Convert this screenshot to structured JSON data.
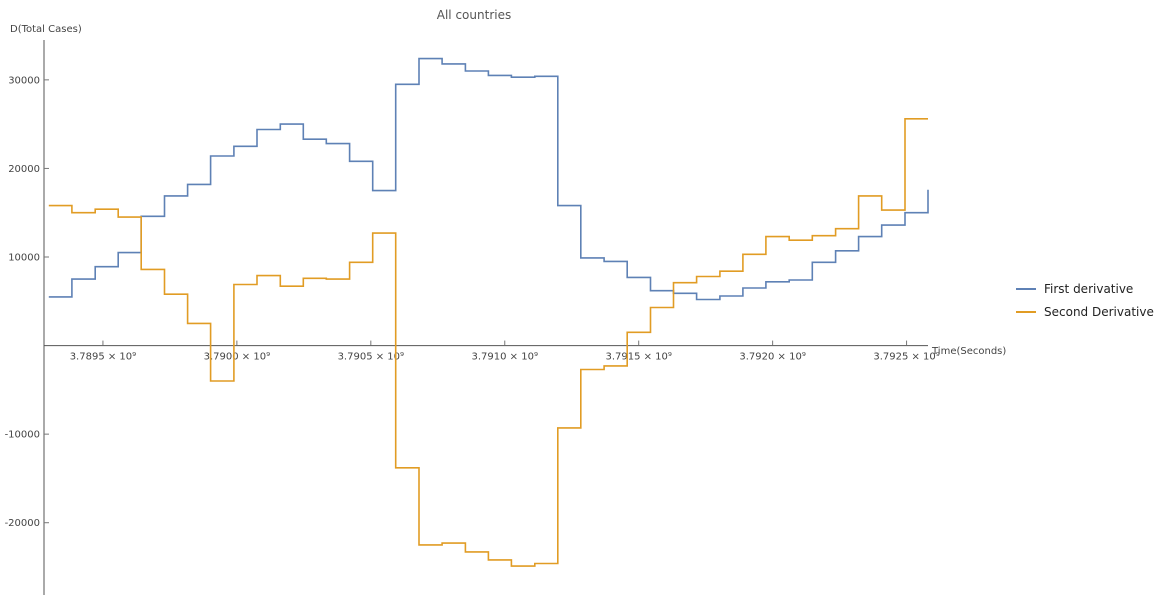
{
  "chart_data": {
    "type": "line",
    "step": true,
    "title": "All countries",
    "xlabel": "Time(Seconds)",
    "ylabel": "D(Total Cases)",
    "xlim": [
      3789280000.0,
      3792580000.0
    ],
    "ylim": [
      -28500,
      34500
    ],
    "xticks": [
      {
        "value": 3789500000.0,
        "label": "3.7895 × 10⁹"
      },
      {
        "value": 3790000000.0,
        "label": "3.7900 × 10⁹"
      },
      {
        "value": 3790500000.0,
        "label": "3.7905 × 10⁹"
      },
      {
        "value": 3791000000.0,
        "label": "3.7910 × 10⁹"
      },
      {
        "value": 3791500000.0,
        "label": "3.7915 × 10⁹"
      },
      {
        "value": 3792000000.0,
        "label": "3.7920 × 10⁹"
      },
      {
        "value": 3792500000.0,
        "label": "3.7925 × 10⁹"
      }
    ],
    "yticks": [
      {
        "value": -20000,
        "label": "-20000"
      },
      {
        "value": -10000,
        "label": "-10000"
      },
      {
        "value": 10000,
        "label": "10000"
      },
      {
        "value": 20000,
        "label": "20000"
      },
      {
        "value": 30000,
        "label": "30000"
      }
    ],
    "legend_position": "right",
    "series": [
      {
        "name": "First derivative",
        "color": "#5e81b5",
        "x": [
          3789298000.0,
          3789384000.0,
          3789471000.0,
          3789557000.0,
          3789643000.0,
          3789730000.0,
          3789816000.0,
          3789902000.0,
          3789989000.0,
          3790075000.0,
          3790162000.0,
          3790248000.0,
          3790334000.0,
          3790421000.0,
          3790507000.0,
          3790593000.0,
          3790680000.0,
          3790766000.0,
          3790853000.0,
          3790939000.0,
          3791025000.0,
          3791112000.0,
          3791198000.0,
          3791284000.0,
          3791371000.0,
          3791457000.0,
          3791544000.0,
          3791630000.0,
          3791716000.0,
          3791803000.0,
          3791889000.0,
          3791975000.0,
          3792062000.0,
          3792148000.0,
          3792235000.0,
          3792321000.0,
          3792407000.0,
          3792494000.0,
          3792580000.0
        ],
        "values": [
          5500,
          7500,
          8900,
          10500,
          14600,
          16900,
          18200,
          21400,
          22500,
          24400,
          25000,
          23300,
          22800,
          20800,
          17500,
          29500,
          32400,
          31800,
          31000,
          30500,
          30300,
          30400,
          15800,
          9900,
          9500,
          7700,
          6200,
          5900,
          5200,
          5600,
          6500,
          7200,
          7400,
          9400,
          10700,
          12300,
          13600,
          15000,
          17600
        ]
      },
      {
        "name": "Second Derivative",
        "color": "#e19c24",
        "x": [
          3789298000.0,
          3789384000.0,
          3789471000.0,
          3789557000.0,
          3789643000.0,
          3789730000.0,
          3789816000.0,
          3789902000.0,
          3789989000.0,
          3790075000.0,
          3790162000.0,
          3790248000.0,
          3790334000.0,
          3790421000.0,
          3790507000.0,
          3790593000.0,
          3790680000.0,
          3790766000.0,
          3790853000.0,
          3790939000.0,
          3791025000.0,
          3791112000.0,
          3791198000.0,
          3791284000.0,
          3791371000.0,
          3791457000.0,
          3791544000.0,
          3791630000.0,
          3791716000.0,
          3791803000.0,
          3791889000.0,
          3791975000.0,
          3792062000.0,
          3792148000.0,
          3792235000.0,
          3792321000.0,
          3792407000.0,
          3792494000.0,
          3792580000.0
        ],
        "values": [
          15800,
          15000,
          15400,
          14500,
          8600,
          5800,
          2500,
          -4000,
          6900,
          7900,
          6700,
          7600,
          7500,
          9400,
          12700,
          -13800,
          -22500,
          -22300,
          -23300,
          -24200,
          -24900,
          -24600,
          -9300,
          -2700,
          -2300,
          1500,
          4300,
          7100,
          7800,
          8400,
          10300,
          12300,
          11900,
          12400,
          13200,
          16900,
          15300,
          25600,
          25600
        ]
      }
    ]
  }
}
